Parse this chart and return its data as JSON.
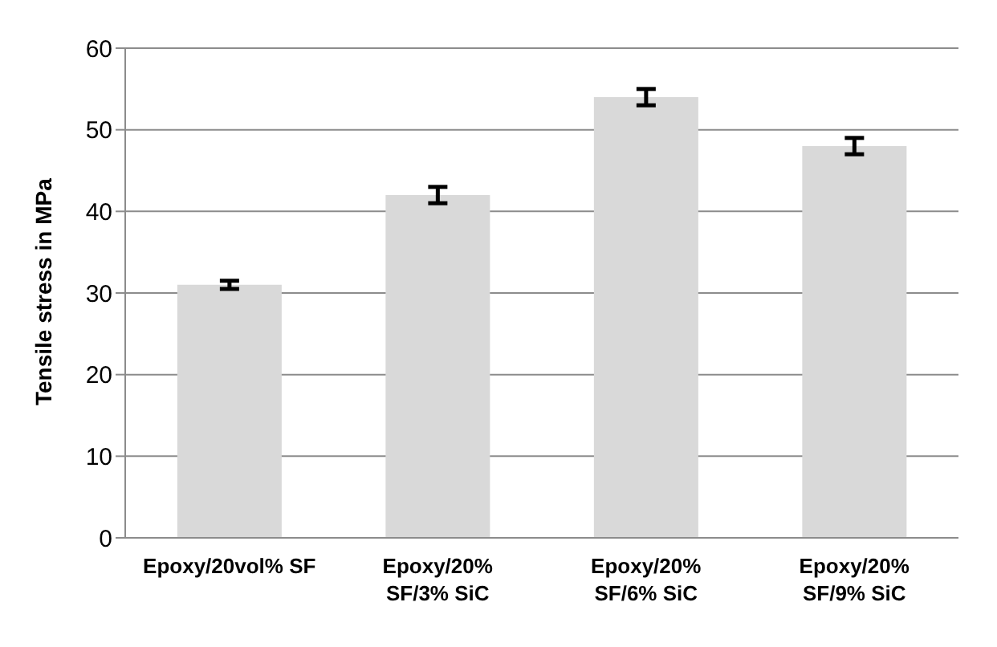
{
  "chart_data": {
    "type": "bar",
    "ylabel": "Tensile stress in MPa",
    "categories": [
      "Epoxy/20vol% SF",
      "Epoxy/20%\nSF/3% SiC",
      "Epoxy/20%\nSF/6% SiC",
      "Epoxy/20%\nSF/9% SiC"
    ],
    "values": [
      31,
      42,
      54,
      48
    ],
    "errors": [
      0.5,
      1,
      1,
      1
    ],
    "color": "#d9d9d9",
    "ylim": [
      0,
      60
    ],
    "yticks": [
      0,
      10,
      20,
      30,
      40,
      50,
      60
    ],
    "grid": "y"
  }
}
